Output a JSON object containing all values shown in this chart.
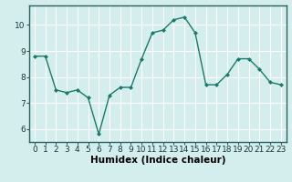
{
  "x": [
    0,
    1,
    2,
    3,
    4,
    5,
    6,
    7,
    8,
    9,
    10,
    11,
    12,
    13,
    14,
    15,
    16,
    17,
    18,
    19,
    20,
    21,
    22,
    23
  ],
  "y": [
    8.8,
    8.8,
    7.5,
    7.4,
    7.5,
    7.2,
    5.8,
    7.3,
    7.6,
    7.6,
    8.7,
    9.7,
    9.8,
    10.2,
    10.3,
    9.7,
    7.7,
    7.7,
    8.1,
    8.7,
    8.7,
    8.3,
    7.8,
    7.7
  ],
  "line_color": "#1a7a6a",
  "marker": "D",
  "marker_size": 2.0,
  "line_width": 1.0,
  "xlabel": "Humidex (Indice chaleur)",
  "xlabel_fontsize": 7.5,
  "background_color": "#d4eeee",
  "grid_color": "#ffffff",
  "grid_alpha": 1.0,
  "ylim": [
    5.5,
    10.75
  ],
  "xlim": [
    -0.5,
    23.5
  ],
  "yticks": [
    6,
    7,
    8,
    9,
    10
  ],
  "xticks": [
    0,
    1,
    2,
    3,
    4,
    5,
    6,
    7,
    8,
    9,
    10,
    11,
    12,
    13,
    14,
    15,
    16,
    17,
    18,
    19,
    20,
    21,
    22,
    23
  ],
  "tick_fontsize": 6.5
}
